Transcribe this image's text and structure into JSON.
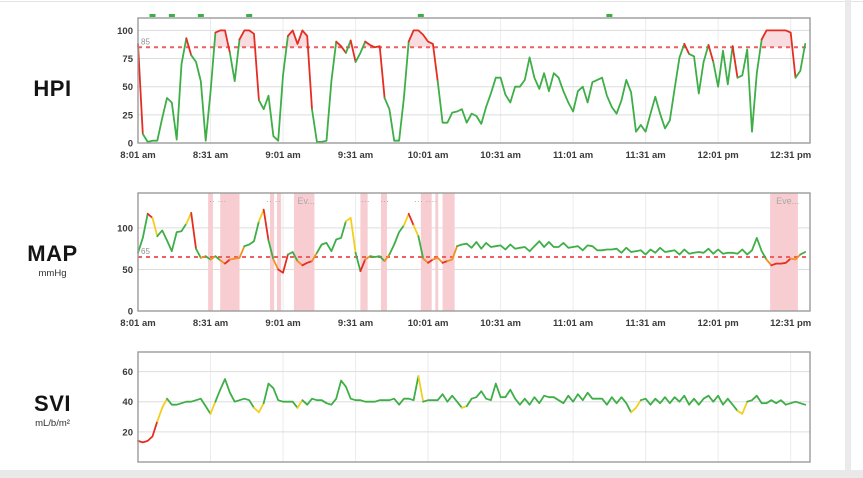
{
  "palette": {
    "green": "#3eae47",
    "yellow": "#f2cf1f",
    "orange": "#f29021",
    "red": "#e52d22",
    "band": "#f7cdd1",
    "fill_above": "#f6c9ce",
    "threshold": "#ee5f5f",
    "grid_v": "#ececec",
    "grid_h": "#dddddd",
    "border": "#9b9b9b",
    "tick_text": "#3a3a3a",
    "event_text": "#a8a8a8",
    "threshold_label": "#8f8f8f"
  },
  "chart_data": {
    "type": "line",
    "x_axis": {
      "t_step": 2,
      "t_max": 278,
      "tick_minutes": [
        0,
        30,
        60,
        90,
        120,
        150,
        180,
        210,
        240,
        270
      ],
      "tick_labels": [
        "8:01 am",
        "8:31 am",
        "9:01 am",
        "9:31 am",
        "10:01 am",
        "10:31 am",
        "11:01 am",
        "11:31 am",
        "12:01 pm",
        "12:31 pm"
      ]
    },
    "charts": [
      {
        "id": "hpi",
        "title": "HPI",
        "unit": "",
        "ylim": [
          0,
          111
        ],
        "yticks": [
          0,
          25,
          50,
          75,
          100
        ],
        "threshold": {
          "value": 85,
          "label": "85"
        },
        "fill_above_threshold": true,
        "default_color": "green",
        "color_rules": [
          {
            "op": "gte",
            "v": 85,
            "c": "red"
          }
        ],
        "top_event_ticks": [
          6,
          14,
          26,
          46,
          117,
          195
        ],
        "values": [
          88,
          8,
          1,
          2,
          2,
          22,
          40,
          36,
          3,
          70,
          93,
          78,
          72,
          55,
          2,
          45,
          98,
          100,
          100,
          80,
          55,
          92,
          100,
          100,
          97,
          38,
          30,
          42,
          6,
          2,
          60,
          95,
          100,
          88,
          100,
          95,
          30,
          1,
          1,
          2,
          55,
          90,
          86,
          80,
          91,
          72,
          80,
          90,
          87,
          85,
          86,
          40,
          30,
          2,
          2,
          40,
          90,
          100,
          100,
          96,
          90,
          88,
          55,
          18,
          18,
          27,
          28,
          30,
          18,
          26,
          24,
          17,
          32,
          44,
          58,
          58,
          43,
          36,
          50,
          50,
          56,
          76,
          58,
          48,
          62,
          46,
          62,
          58,
          46,
          36,
          28,
          46,
          50,
          36,
          54,
          56,
          58,
          42,
          32,
          26,
          38,
          56,
          45,
          10,
          16,
          10,
          26,
          41,
          26,
          13,
          20,
          48,
          76,
          88,
          79,
          77,
          44,
          72,
          87,
          72,
          50,
          82,
          52,
          86,
          58,
          60,
          83,
          10,
          62,
          92,
          100,
          100,
          100,
          100,
          100,
          98,
          58,
          64,
          88
        ]
      },
      {
        "id": "map",
        "title": "MAP",
        "unit": "mmHg",
        "ylim": [
          0,
          142
        ],
        "yticks": [
          0,
          50,
          100
        ],
        "threshold": {
          "value": 65,
          "label": "65"
        },
        "fill_above_threshold": false,
        "default_color": "green",
        "color_rules": [
          {
            "op": "lt",
            "v": 60,
            "c": "red"
          },
          {
            "op": "lt",
            "v": 65,
            "c": "orange"
          },
          {
            "op": "gte",
            "v": 117,
            "c": "red"
          },
          {
            "op": "gte",
            "v": 100,
            "c": "yellow"
          }
        ],
        "bands": [
          [
            29,
            31
          ],
          [
            34,
            42
          ],
          [
            54.6,
            56.3
          ],
          [
            57.5,
            59.2
          ],
          [
            64.5,
            73
          ],
          [
            92,
            95
          ],
          [
            100.5,
            103
          ],
          [
            117,
            121.5
          ],
          [
            123,
            124.2
          ],
          [
            126,
            131
          ],
          [
            261.5,
            273
          ]
        ],
        "events": [
          {
            "t": 33,
            "label": "·· ···"
          },
          {
            "t": 56,
            "label": "·· ··"
          },
          {
            "t": 66,
            "label": "Ev..."
          },
          {
            "t": 94,
            "label": "···"
          },
          {
            "t": 102,
            "label": "···"
          },
          {
            "t": 119,
            "label": "··· ····"
          },
          {
            "t": 264,
            "label": "Eve..."
          }
        ],
        "values": [
          70,
          88,
          117,
          112,
          90,
          97,
          85,
          72,
          95,
          96,
          105,
          118,
          75,
          64,
          66,
          62,
          66,
          61,
          57,
          62,
          63,
          64,
          78,
          80,
          84,
          108,
          122,
          85,
          62,
          50,
          46,
          68,
          71,
          60,
          55,
          58,
          60,
          70,
          80,
          82,
          72,
          86,
          88,
          108,
          112,
          70,
          48,
          62,
          66,
          65,
          66,
          60,
          68,
          80,
          95,
          103,
          117,
          103,
          90,
          63,
          58,
          62,
          64,
          58,
          60,
          62,
          78,
          80,
          81,
          76,
          83,
          75,
          82,
          77,
          78,
          79,
          74,
          80,
          75,
          76,
          77,
          72,
          78,
          84,
          77,
          83,
          77,
          77,
          82,
          76,
          77,
          78,
          73,
          79,
          78,
          73,
          73,
          74,
          74,
          75,
          70,
          76,
          71,
          72,
          73,
          68,
          74,
          70,
          76,
          71,
          72,
          73,
          68,
          74,
          69,
          70,
          71,
          70,
          75,
          69,
          74,
          69,
          70,
          70,
          69,
          74,
          68,
          73,
          88,
          72,
          62,
          55,
          57,
          57,
          58,
          63,
          62,
          68,
          71
        ]
      },
      {
        "id": "svi",
        "title": "SVI",
        "unit": "mL/b/m²",
        "ylim": [
          0,
          73
        ],
        "yticks": [
          20,
          40,
          60
        ],
        "fill_above_threshold": false,
        "default_color": "green",
        "color_rules": [
          {
            "op": "lt",
            "v": 18,
            "c": "red"
          },
          {
            "op": "lt",
            "v": 37,
            "c": "yellow"
          }
        ],
        "color_overrides": {
          "58": "yellow"
        },
        "values": [
          14,
          13,
          14,
          17,
          27,
          36,
          42,
          38,
          38,
          39,
          40,
          40,
          41,
          42,
          37,
          32,
          40,
          48,
          55,
          46,
          40,
          41,
          42,
          41,
          36,
          33,
          39,
          52,
          49,
          41,
          40,
          40,
          40,
          36,
          41,
          38,
          42,
          41,
          41,
          39,
          38,
          42,
          54,
          50,
          42,
          41,
          41,
          40,
          40,
          40,
          41,
          41,
          41,
          42,
          38,
          42,
          42,
          41,
          57,
          40,
          41,
          41,
          41,
          45,
          40,
          44,
          40,
          36,
          37,
          42,
          43,
          47,
          42,
          41,
          52,
          43,
          43,
          48,
          42,
          38,
          42,
          38,
          43,
          39,
          44,
          43,
          43,
          41,
          39,
          44,
          40,
          45,
          41,
          46,
          42,
          42,
          42,
          38,
          43,
          39,
          43,
          39,
          33,
          36,
          41,
          42,
          38,
          42,
          39,
          43,
          39,
          43,
          40,
          44,
          38,
          42,
          38,
          42,
          44,
          40,
          44,
          38,
          42,
          38,
          34,
          32,
          40,
          41,
          44,
          39,
          39,
          41,
          39,
          41,
          38,
          39,
          40,
          39,
          38
        ]
      }
    ]
  }
}
